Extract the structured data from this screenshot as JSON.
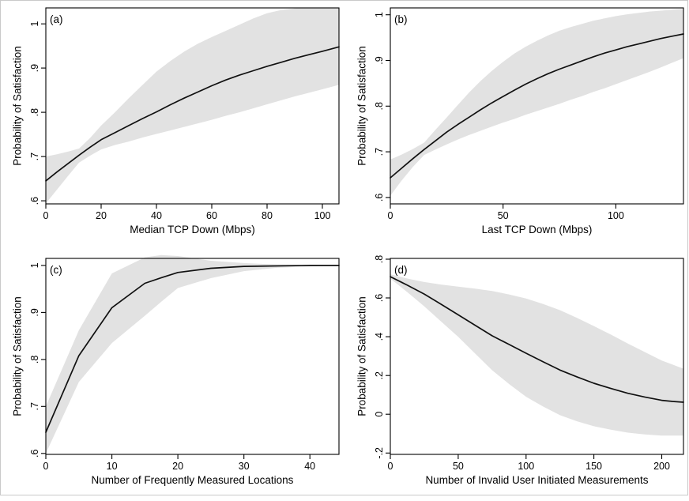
{
  "figure": {
    "description": "Four-panel figure of predicted probability of satisfaction with 95% confidence bands",
    "colors": {
      "background": "#ffffff",
      "band": "#e2e2e2",
      "line": "#111111",
      "axis": "#000000",
      "frame_border": "#c9c9c9"
    }
  },
  "chart_data": [
    {
      "id": "a",
      "type": "line",
      "panel_label": "(a)",
      "xlabel": "Median TCP Down (Mbps)",
      "ylabel": "Probability of Satisfaction",
      "legend": "none",
      "grid": false,
      "xlim": [
        0,
        106
      ],
      "ylim": [
        0.593,
        1.036
      ],
      "xticks": [
        0,
        20,
        40,
        60,
        80,
        100
      ],
      "xtick_labels": [
        "0",
        "20",
        "40",
        "60",
        "80",
        "100"
      ],
      "yticks": [
        0.6,
        0.7,
        0.8,
        0.9,
        1.0
      ],
      "ytick_labels": [
        ".6",
        ".7",
        ".8",
        ".9",
        "1"
      ],
      "x": [
        0,
        4,
        8,
        12,
        16,
        20,
        25,
        30,
        35,
        40,
        45,
        50,
        55,
        60,
        65,
        70,
        75,
        80,
        85,
        90,
        95,
        100,
        106
      ],
      "line": [
        0.645,
        0.665,
        0.684,
        0.703,
        0.721,
        0.738,
        0.754,
        0.77,
        0.786,
        0.801,
        0.817,
        0.832,
        0.846,
        0.86,
        0.873,
        0.884,
        0.894,
        0.904,
        0.913,
        0.922,
        0.93,
        0.938,
        0.948
      ],
      "ci_upper": [
        0.7,
        0.705,
        0.711,
        0.718,
        0.742,
        0.77,
        0.8,
        0.832,
        0.862,
        0.892,
        0.916,
        0.937,
        0.955,
        0.97,
        0.984,
        0.998,
        1.012,
        1.024,
        1.031,
        1.035,
        1.036,
        1.036,
        1.036
      ],
      "ci_lower": [
        0.594,
        0.625,
        0.656,
        0.686,
        0.702,
        0.716,
        0.726,
        0.734,
        0.743,
        0.751,
        0.759,
        0.767,
        0.775,
        0.783,
        0.792,
        0.8,
        0.809,
        0.818,
        0.827,
        0.836,
        0.844,
        0.852,
        0.862
      ]
    },
    {
      "id": "b",
      "type": "line",
      "panel_label": "(b)",
      "xlabel": "Last TCP Down (Mbps)",
      "ylabel": "Probability of Satisfaction",
      "legend": "none",
      "grid": false,
      "xlim": [
        0,
        130
      ],
      "ylim": [
        0.586,
        1.015
      ],
      "xticks": [
        0,
        50,
        100
      ],
      "xtick_labels": [
        "0",
        "50",
        "100"
      ],
      "yticks": [
        0.6,
        0.7,
        0.8,
        0.9,
        1.0
      ],
      "ytick_labels": [
        ".6",
        ".7",
        ".8",
        ".9",
        "1"
      ],
      "x": [
        0,
        5,
        10,
        15,
        20,
        25,
        30,
        35,
        40,
        45,
        50,
        55,
        60,
        65,
        70,
        75,
        80,
        85,
        90,
        95,
        100,
        105,
        110,
        115,
        120,
        125,
        130
      ],
      "line": [
        0.643,
        0.664,
        0.685,
        0.705,
        0.724,
        0.743,
        0.76,
        0.776,
        0.792,
        0.807,
        0.821,
        0.835,
        0.848,
        0.86,
        0.871,
        0.881,
        0.89,
        0.899,
        0.908,
        0.916,
        0.923,
        0.93,
        0.936,
        0.942,
        0.948,
        0.953,
        0.958
      ],
      "ci_upper": [
        0.683,
        0.694,
        0.706,
        0.72,
        0.748,
        0.775,
        0.803,
        0.83,
        0.855,
        0.877,
        0.897,
        0.915,
        0.93,
        0.943,
        0.955,
        0.965,
        0.973,
        0.98,
        0.987,
        0.992,
        0.997,
        1.001,
        1.004,
        1.007,
        1.009,
        1.011,
        1.013
      ],
      "ci_lower": [
        0.604,
        0.637,
        0.667,
        0.693,
        0.705,
        0.716,
        0.727,
        0.737,
        0.746,
        0.755,
        0.764,
        0.772,
        0.781,
        0.789,
        0.797,
        0.805,
        0.814,
        0.822,
        0.831,
        0.839,
        0.848,
        0.857,
        0.866,
        0.875,
        0.885,
        0.895,
        0.905
      ]
    },
    {
      "id": "c",
      "type": "line",
      "panel_label": "(c)",
      "xlabel": "Number of Frequently Measured Locations",
      "ylabel": "Probability of Satisfaction",
      "legend": "none",
      "grid": false,
      "xlim": [
        0,
        44.4
      ],
      "ylim": [
        0.598,
        1.015
      ],
      "xticks": [
        0,
        10,
        20,
        30,
        40
      ],
      "xtick_labels": [
        "0",
        "10",
        "20",
        "30",
        "40"
      ],
      "yticks": [
        0.6,
        0.7,
        0.8,
        0.9,
        1.0
      ],
      "ytick_labels": [
        ".6",
        ".7",
        ".8",
        ".9",
        "1"
      ],
      "x": [
        0,
        5,
        10,
        15,
        17.5,
        20,
        25,
        30,
        35,
        40,
        44.4
      ],
      "line": [
        0.645,
        0.808,
        0.91,
        0.962,
        0.974,
        0.985,
        0.994,
        0.998,
        0.999,
        1.0,
        1.0
      ],
      "ci_upper": [
        0.7,
        0.862,
        0.983,
        1.017,
        1.022,
        1.02,
        1.01,
        1.005,
        1.002,
        1.001,
        1.0
      ],
      "ci_lower": [
        0.6,
        0.752,
        0.835,
        0.893,
        0.923,
        0.952,
        0.973,
        0.988,
        0.995,
        0.998,
        1.0
      ]
    },
    {
      "id": "d",
      "type": "line",
      "panel_label": "(d)",
      "xlabel": "Number of Invalid User Initiated Measurements",
      "ylabel": "Probability of Satisfaction",
      "legend": "none",
      "grid": false,
      "xlim": [
        0,
        216
      ],
      "ylim": [
        -0.207,
        0.804
      ],
      "xticks": [
        0,
        50,
        100,
        150,
        200
      ],
      "xtick_labels": [
        "0",
        "50",
        "100",
        "150",
        "200"
      ],
      "yticks": [
        -0.2,
        0,
        0.2,
        0.4,
        0.6,
        0.8
      ],
      "ytick_labels": [
        "-.2",
        "0",
        ".2",
        ".4",
        ".6",
        ".8"
      ],
      "x": [
        0,
        12.5,
        25,
        37.5,
        50,
        62.5,
        75,
        87.5,
        100,
        112.5,
        125,
        137.5,
        150,
        162.5,
        175,
        187.5,
        200,
        208,
        216
      ],
      "line": [
        0.71,
        0.666,
        0.62,
        0.567,
        0.513,
        0.459,
        0.405,
        0.36,
        0.315,
        0.271,
        0.228,
        0.193,
        0.16,
        0.133,
        0.108,
        0.089,
        0.072,
        0.066,
        0.062
      ],
      "ci_upper": [
        0.722,
        0.7,
        0.682,
        0.669,
        0.658,
        0.648,
        0.636,
        0.618,
        0.597,
        0.569,
        0.537,
        0.497,
        0.455,
        0.411,
        0.365,
        0.321,
        0.277,
        0.256,
        0.235
      ],
      "ci_lower": [
        0.7,
        0.63,
        0.557,
        0.478,
        0.399,
        0.313,
        0.227,
        0.156,
        0.09,
        0.04,
        -0.005,
        -0.036,
        -0.062,
        -0.08,
        -0.095,
        -0.104,
        -0.11,
        -0.11,
        -0.11
      ]
    }
  ]
}
